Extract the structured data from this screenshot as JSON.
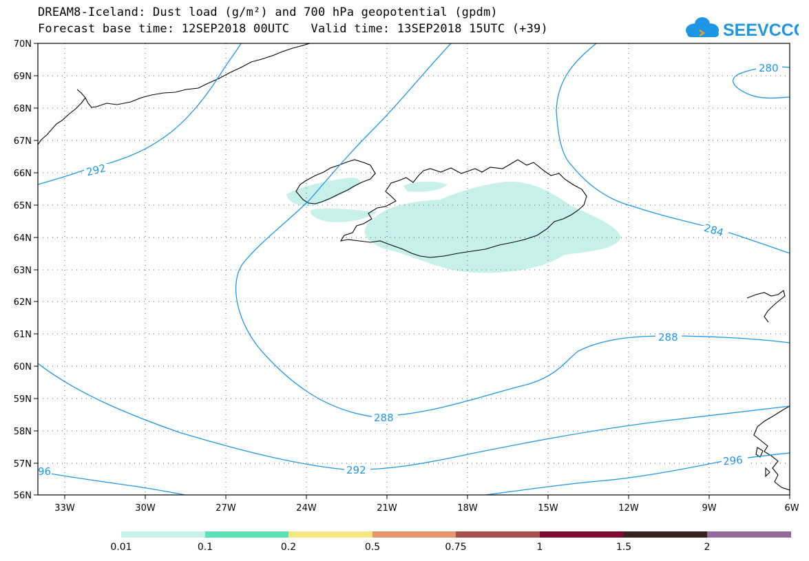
{
  "header": {
    "title_line1": "DREAM8-Iceland: Dust load (g/m²) and 700 hPa geopotential (gpdm)",
    "title_line2": "Forecast base time: 12SEP2018 00UTC   Valid time: 13SEP2018 15UTC (+39)",
    "logo_text": "SEEVCCC"
  },
  "map": {
    "lat_labels": [
      "70N",
      "69N",
      "68N",
      "67N",
      "66N",
      "65N",
      "64N",
      "63N",
      "62N",
      "61N",
      "60N",
      "59N",
      "58N",
      "57N",
      "56N"
    ],
    "lon_labels": [
      "33W",
      "30W",
      "27W",
      "24W",
      "21W",
      "18W",
      "15W",
      "12W",
      "9W",
      "6W"
    ],
    "contour_labels": [
      "292",
      "280",
      "284",
      "288",
      "288",
      "292",
      "296",
      "96"
    ],
    "colors": {
      "contour": "#1e96e6",
      "dust_fill": "#c8f0eb",
      "coast": "#000000"
    }
  },
  "colorbar": {
    "labels": [
      "0.01",
      "0.1",
      "0.2",
      "0.5",
      "0.75",
      "1",
      "1.5",
      "2"
    ],
    "colors": [
      "#c8f0eb",
      "#5ae1b4",
      "#f5e682",
      "#e6966e",
      "#a5504b",
      "#7d0a32",
      "#37231e",
      "#96699b"
    ]
  }
}
